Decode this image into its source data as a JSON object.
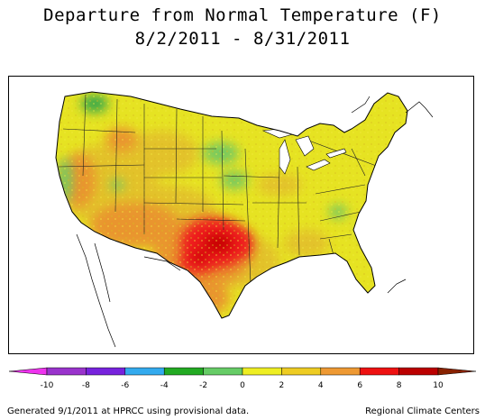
{
  "title": {
    "line1": "Departure from Normal Temperature (F)",
    "line2": "8/2/2011 - 8/31/2011"
  },
  "legend": {
    "ticks": [
      "-10",
      "-8",
      "-6",
      "-4",
      "-2",
      "0",
      "2",
      "4",
      "6",
      "8",
      "10"
    ],
    "colors": [
      "#ee33ee",
      "#9933cc",
      "#7722dd",
      "#33aaee",
      "#22aa22",
      "#66cc66",
      "#eeee22",
      "#eecc22",
      "#ee9933",
      "#ee1111",
      "#bb0000",
      "#882200"
    ]
  },
  "map": {
    "region": "Contiguous United States",
    "colors": {
      "warm_slight": "#e6e322",
      "warm_mild": "#e3c22a",
      "warm_moderate": "#e9952f",
      "warm_strong": "#ee1c1c",
      "warm_extreme": "#c70505",
      "near_normal_cool": "#77c95f",
      "cool": "#38a84a"
    },
    "hotspot": "Texas / Oklahoma"
  },
  "footer": {
    "left": "Generated 9/1/2011 at HPRCC using provisional data.",
    "right": "Regional Climate Centers"
  }
}
